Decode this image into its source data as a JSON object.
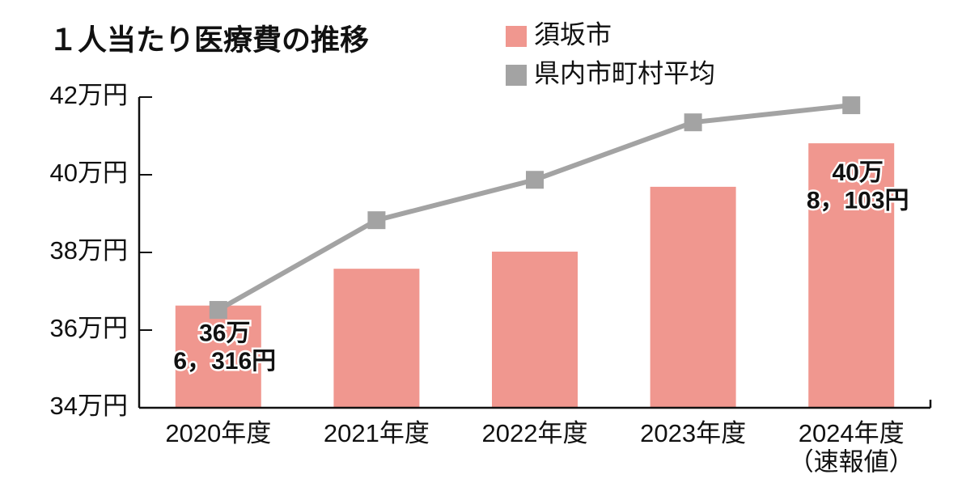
{
  "chart_data": {
    "type": "bar",
    "title": "１人当たり医療費の推移",
    "categories": [
      "2020年度",
      "2021年度",
      "2022年度",
      "2023年度",
      "2024年度\n（速報値）"
    ],
    "series": [
      {
        "name": "須坂市",
        "type": "bar",
        "color": "#f0978f",
        "values": [
          36.6316,
          37.58,
          38.02,
          39.69,
          40.8103
        ],
        "value_labels": [
          "36万\n6，316円",
          null,
          null,
          null,
          "40万\n8，103円"
        ]
      },
      {
        "name": "県内市町村平均",
        "type": "line",
        "color": "#a3a3a3",
        "values": [
          36.52,
          38.83,
          39.87,
          41.35,
          41.79
        ]
      }
    ],
    "ylim": [
      34,
      42
    ],
    "yticks": [
      {
        "value": 34,
        "label": "34万円"
      },
      {
        "value": 36,
        "label": "36万円"
      },
      {
        "value": 38,
        "label": "38万円"
      },
      {
        "value": 40,
        "label": "40万円"
      },
      {
        "value": 42,
        "label": "42万円"
      }
    ],
    "legend": "top"
  }
}
